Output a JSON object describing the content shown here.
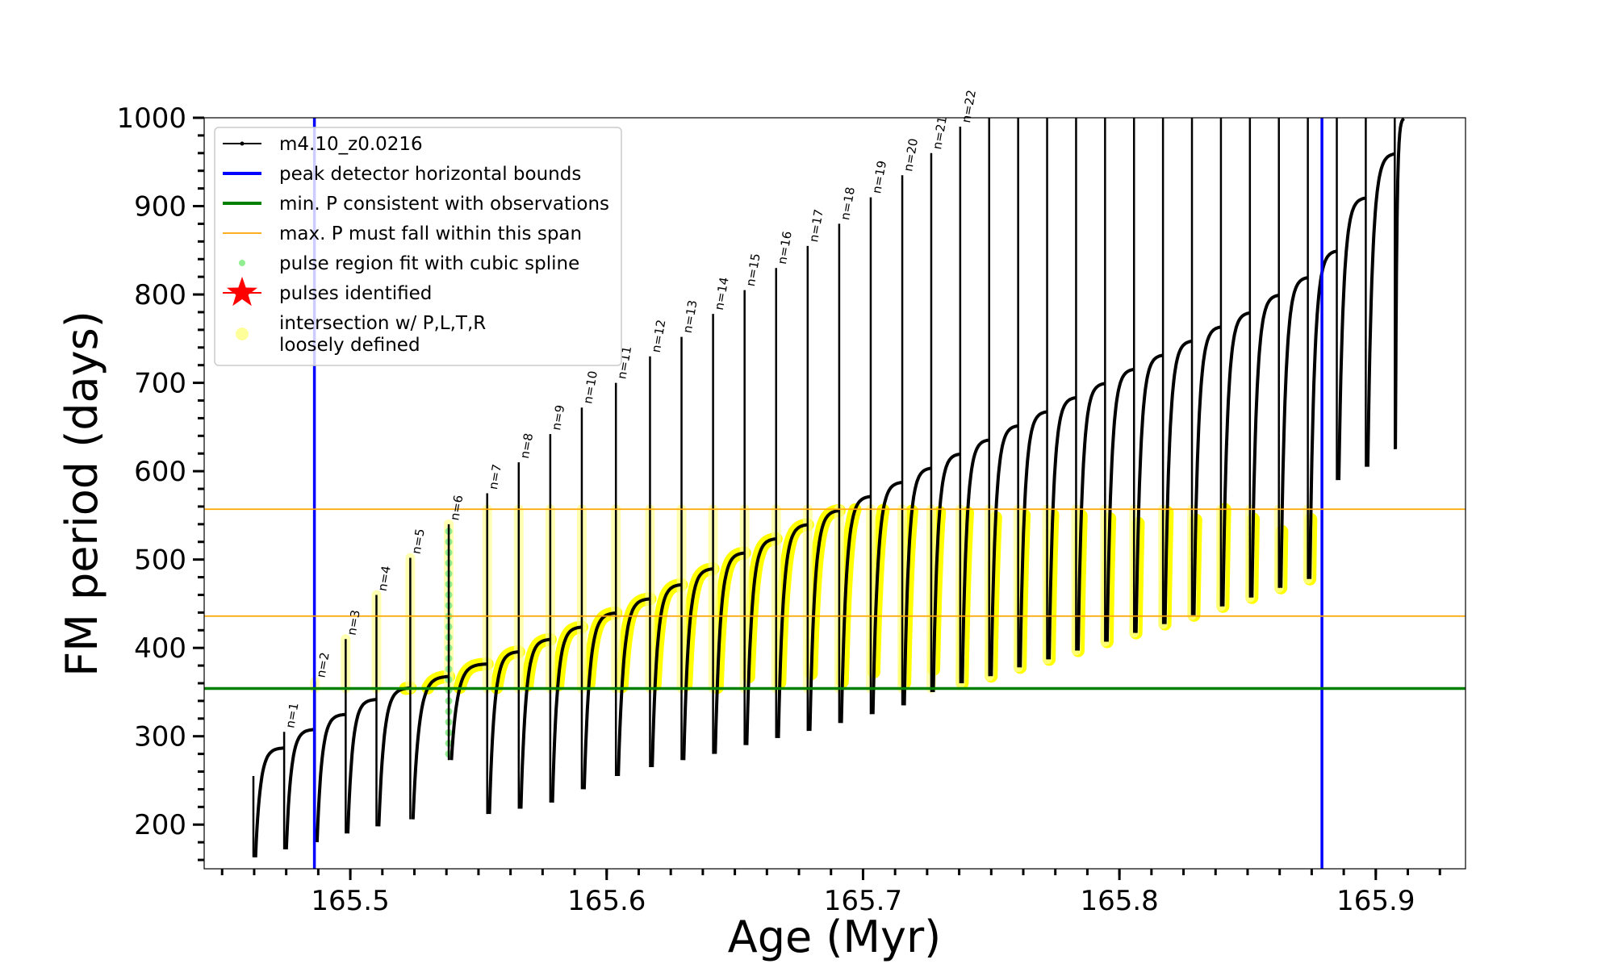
{
  "chart_data": {
    "type": "line",
    "title": "",
    "xlabel": "Age (Myr)",
    "ylabel": "FM period (days)",
    "xlim": [
      165.443,
      165.935
    ],
    "ylim": [
      150,
      1000
    ],
    "x_ticks": [
      165.5,
      165.6,
      165.7,
      165.8,
      165.9
    ],
    "y_ticks": [
      200,
      300,
      400,
      500,
      600,
      700,
      800,
      900,
      1000
    ],
    "grid": false,
    "legend_position": "upper-left",
    "colors": {
      "track": "#000000",
      "bounds": "#0000ff",
      "min_p": "#008000",
      "max_p_span": "#ffa500",
      "spline": "#90ee90",
      "pulses": "#ff0000",
      "intersection": "#ffff00",
      "intersection_loose": "#ffff99"
    },
    "legend": [
      {
        "key": "track",
        "label": "m4.10_z0.0216"
      },
      {
        "key": "bounds",
        "label": "peak detector horizontal bounds"
      },
      {
        "key": "min_p",
        "label": "min. P consistent with observations"
      },
      {
        "key": "max_p_span",
        "label": "max. P must fall within this span"
      },
      {
        "key": "spline",
        "label": "pulse region fit with cubic spline"
      },
      {
        "key": "pulses",
        "label": "pulses identified"
      },
      {
        "key": "intersection",
        "label": "intersection w/ P,L,T,R"
      },
      {
        "key": "intersection_loose",
        "label": "loosely defined"
      }
    ],
    "vertical_bounds": [
      165.486,
      165.879
    ],
    "min_p_line": 354,
    "max_p_span": [
      436,
      557
    ],
    "series": [
      {
        "key": "track",
        "pulse_ages": [
          165.4622,
          165.4742,
          165.4862,
          165.4982,
          165.5102,
          165.5234,
          165.5384,
          165.5534,
          165.5657,
          165.578,
          165.5903,
          165.6036,
          165.6169,
          165.6292,
          165.6415,
          165.6538,
          165.6661,
          165.6784,
          165.6907,
          165.703,
          165.7153,
          165.7266,
          165.7379,
          165.7492,
          165.7605,
          165.7718,
          165.7831,
          165.7944,
          165.8057,
          165.817,
          165.8283,
          165.8396,
          165.8509,
          165.8622,
          165.8735,
          165.8848,
          165.8961,
          165.9074
        ],
        "cycle_end_ages": [
          165.4742,
          165.4862,
          165.4982,
          165.5102,
          165.5234,
          165.5384,
          165.5534,
          165.5657,
          165.578,
          165.5903,
          165.6036,
          165.6169,
          165.6292,
          165.6415,
          165.6538,
          165.6661,
          165.6784,
          165.6907,
          165.703,
          165.7153,
          165.7266,
          165.7379,
          165.7492,
          165.7605,
          165.7718,
          165.7831,
          165.7944,
          165.8057,
          165.817,
          165.8283,
          165.8396,
          165.8509,
          165.8622,
          165.8735,
          165.8848,
          165.8961,
          165.9074,
          165.911
        ],
        "min_periods": [
          163,
          172,
          180,
          190,
          198,
          206,
          273,
          212,
          218,
          225,
          240,
          255,
          265,
          273,
          280,
          290,
          298,
          306,
          315,
          325,
          335,
          350,
          360,
          368,
          378,
          387,
          397,
          407,
          417,
          427,
          437,
          447,
          457,
          468,
          478,
          590,
          605,
          625
        ],
        "plateau_periods": [
          287,
          308,
          325,
          342,
          355,
          368,
          382,
          396,
          410,
          424,
          440,
          456,
          472,
          490,
          508,
          524,
          540,
          556,
          572,
          588,
          604,
          620,
          636,
          652,
          668,
          684,
          700,
          716,
          732,
          748,
          764,
          780,
          800,
          820,
          850,
          910,
          960,
          1000
        ],
        "spike_peaks": [
          255,
          305,
          362,
          410,
          460,
          502,
          540,
          575,
          610,
          642,
          672,
          700,
          730,
          752,
          778,
          805,
          830,
          855,
          880,
          910,
          935,
          960,
          990,
          1000,
          1000,
          1000,
          1000,
          1000,
          1000,
          1000,
          1000,
          1000,
          1000,
          1000,
          1000,
          1000,
          1000,
          1000
        ]
      }
    ],
    "pulse_labels": [
      "n=1",
      "n=2",
      "n=3",
      "n=4",
      "n=5",
      "n=6",
      "n=7",
      "n=8",
      "n=9",
      "n=10",
      "n=11",
      "n=12",
      "n=13",
      "n=14",
      "n=15",
      "n=16",
      "n=17",
      "n=18",
      "n=19",
      "n=20",
      "n=21",
      "n=22"
    ],
    "pulse_label_ages": [
      165.4742,
      165.4862,
      165.4982,
      165.5102,
      165.5234,
      165.5384,
      165.5534,
      165.5657,
      165.578,
      165.5903,
      165.6036,
      165.6169,
      165.6292,
      165.6415,
      165.6538,
      165.6661,
      165.6784,
      165.6907,
      165.703,
      165.7153,
      165.7266,
      165.7379
    ],
    "pulse_label_periods": [
      305,
      362,
      410,
      460,
      502,
      540,
      575,
      610,
      642,
      672,
      700,
      730,
      752,
      778,
      805,
      830,
      855,
      880,
      910,
      935,
      960,
      990
    ]
  }
}
